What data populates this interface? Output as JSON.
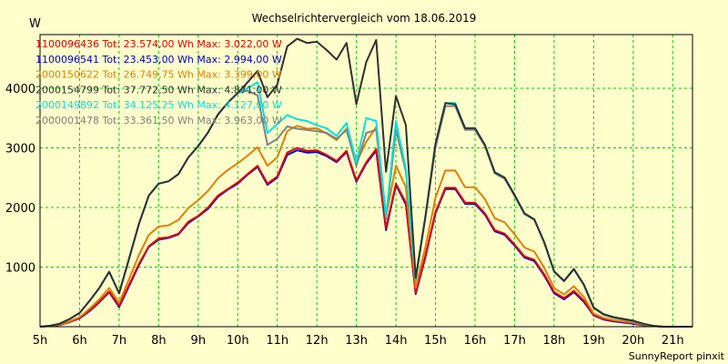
{
  "chart_data": {
    "type": "line",
    "title": "Wechselrichtervergleich vom 18.06.2019",
    "ylabel": "W",
    "xlabel": "",
    "footer": "SunnyReport pinxit",
    "x_range": [
      5,
      21.5
    ],
    "ylim": [
      0,
      4900
    ],
    "y_ticks": [
      1000,
      2000,
      3000,
      4000
    ],
    "x_ticks": [
      {
        "value": 5,
        "label": "5h"
      },
      {
        "value": 6,
        "label": "6h"
      },
      {
        "value": 7,
        "label": "7h"
      },
      {
        "value": 8,
        "label": "8h"
      },
      {
        "value": 9,
        "label": "9h"
      },
      {
        "value": 10,
        "label": "10h"
      },
      {
        "value": 11,
        "label": "11h"
      },
      {
        "value": 12,
        "label": "12h"
      },
      {
        "value": 13,
        "label": "13h"
      },
      {
        "value": 14,
        "label": "14h"
      },
      {
        "value": 15,
        "label": "15h"
      },
      {
        "value": 16,
        "label": "16h"
      },
      {
        "value": 17,
        "label": "17h"
      },
      {
        "value": 18,
        "label": "18h"
      },
      {
        "value": 19,
        "label": "19h"
      },
      {
        "value": 20,
        "label": "20h"
      },
      {
        "value": 21,
        "label": "21h"
      }
    ],
    "grid": true,
    "x": [
      5.0,
      5.25,
      5.5,
      5.75,
      6.0,
      6.25,
      6.5,
      6.75,
      7.0,
      7.25,
      7.5,
      7.75,
      8.0,
      8.25,
      8.5,
      8.75,
      9.0,
      9.25,
      9.5,
      9.75,
      10.0,
      10.25,
      10.5,
      10.75,
      11.0,
      11.25,
      11.5,
      11.75,
      12.0,
      12.25,
      12.5,
      12.75,
      13.0,
      13.25,
      13.5,
      13.75,
      14.0,
      14.25,
      14.5,
      14.75,
      15.0,
      15.25,
      15.5,
      15.75,
      16.0,
      16.25,
      16.5,
      16.75,
      17.0,
      17.25,
      17.5,
      17.75,
      18.0,
      18.25,
      18.5,
      18.75,
      19.0,
      19.25,
      19.5,
      19.75,
      20.0,
      20.25,
      20.5,
      20.75,
      21.0,
      21.25,
      21.5
    ],
    "series": [
      {
        "name": "1100096436",
        "legend": "1100096436 Tot: 23.574,00 Wh Max: 3.022,00 W",
        "color": "#e00000",
        "values": [
          0,
          10,
          30,
          80,
          150,
          270,
          420,
          590,
          350,
          700,
          1050,
          1350,
          1480,
          1500,
          1560,
          1760,
          1860,
          2000,
          2200,
          2310,
          2420,
          2560,
          2700,
          2400,
          2520,
          2920,
          3000,
          2950,
          2960,
          2880,
          2780,
          2950,
          2450,
          2760,
          2980,
          1650,
          2400,
          2080,
          570,
          1200,
          1920,
          2330,
          2330,
          2080,
          2080,
          1900,
          1620,
          1560,
          1380,
          1180,
          1120,
          880,
          580,
          480,
          600,
          440,
          200,
          130,
          100,
          80,
          60,
          30,
          10,
          0,
          0,
          0,
          0
        ]
      },
      {
        "name": "1100096541",
        "legend": "1100096541 Tot: 23.453,00 Wh Max: 2.994,00 W",
        "color": "#0000cc",
        "values": [
          0,
          10,
          30,
          80,
          140,
          260,
          410,
          580,
          330,
          680,
          1030,
          1340,
          1460,
          1490,
          1550,
          1740,
          1850,
          1980,
          2180,
          2300,
          2400,
          2550,
          2680,
          2380,
          2500,
          2880,
          2960,
          2920,
          2930,
          2860,
          2760,
          2930,
          2430,
          2740,
          2950,
          1620,
          2380,
          2050,
          550,
          1180,
          1900,
          2310,
          2310,
          2060,
          2060,
          1880,
          1600,
          1540,
          1360,
          1160,
          1100,
          860,
          560,
          460,
          580,
          420,
          190,
          120,
          90,
          70,
          50,
          25,
          10,
          0,
          0,
          0,
          0
        ]
      },
      {
        "name": "2000150622",
        "legend": "2000150622 Tot: 26.749,75 Wh Max: 3.399,00 W",
        "color": "#e08000",
        "values": [
          0,
          10,
          40,
          90,
          160,
          300,
          460,
          650,
          400,
          800,
          1200,
          1540,
          1680,
          1700,
          1790,
          1990,
          2120,
          2280,
          2490,
          2630,
          2740,
          2870,
          3010,
          2700,
          2840,
          3280,
          3370,
          3320,
          3330,
          3240,
          3130,
          3320,
          2750,
          3100,
          3350,
          1850,
          2700,
          2340,
          650,
          1350,
          2160,
          2620,
          2620,
          2340,
          2340,
          2140,
          1820,
          1750,
          1550,
          1330,
          1260,
          990,
          650,
          540,
          680,
          500,
          220,
          150,
          110,
          90,
          70,
          35,
          10,
          0,
          0,
          0,
          0
        ]
      },
      {
        "name": "2000154799",
        "legend": "2000154799 Tot: 37.772,50 Wh Max: 4.871,00 W",
        "color": "#303030",
        "values": [
          0,
          15,
          50,
          130,
          230,
          430,
          650,
          920,
          560,
          1140,
          1720,
          2200,
          2400,
          2440,
          2560,
          2840,
          3030,
          3260,
          3560,
          3760,
          3920,
          4100,
          4290,
          3850,
          4060,
          4700,
          4830,
          4760,
          4780,
          4640,
          4480,
          4760,
          3730,
          4440,
          4810,
          2600,
          3870,
          3380,
          820,
          1870,
          3060,
          3750,
          3730,
          3330,
          3330,
          3050,
          2590,
          2500,
          2210,
          1900,
          1800,
          1420,
          930,
          770,
          970,
          710,
          320,
          210,
          160,
          130,
          100,
          50,
          15,
          0,
          0,
          0,
          0
        ]
      },
      {
        "name": "2000149892",
        "legend": "2000149892 Tot: 34.125,25 Wh Max: 4.127,00 W",
        "color": "#00e0e0",
        "values": [
          0,
          15,
          50,
          130,
          230,
          430,
          650,
          920,
          560,
          1140,
          1720,
          2200,
          2400,
          2440,
          2560,
          2840,
          3030,
          3260,
          3560,
          3760,
          3920,
          4000,
          4100,
          3250,
          3400,
          3550,
          3480,
          3450,
          3380,
          3330,
          3200,
          3420,
          2750,
          3500,
          3450,
          1850,
          3450,
          2650,
          800,
          1870,
          3060,
          3750,
          3750,
          3330,
          3330,
          3050,
          2590,
          2500,
          2210,
          1900,
          1800,
          1420,
          930,
          770,
          970,
          710,
          320,
          210,
          160,
          130,
          100,
          50,
          15,
          0,
          0,
          0,
          0
        ]
      },
      {
        "name": "2000001478",
        "legend": "2000001478 Tot: 33.361,50 Wh Max: 3.963,00 W",
        "color": "#808080",
        "values": [
          0,
          15,
          50,
          130,
          230,
          430,
          650,
          920,
          560,
          1140,
          1720,
          2200,
          2400,
          2440,
          2560,
          2840,
          3030,
          3260,
          3560,
          3760,
          3920,
          3960,
          3880,
          3050,
          3150,
          3360,
          3320,
          3300,
          3280,
          3250,
          3150,
          3300,
          2700,
          3250,
          3300,
          1800,
          3300,
          2600,
          780,
          1850,
          3000,
          3700,
          3700,
          3300,
          3300,
          3030,
          2570,
          2480,
          2190,
          1890,
          1790,
          1410,
          920,
          760,
          960,
          700,
          310,
          200,
          150,
          120,
          90,
          45,
          15,
          0,
          0,
          0,
          0
        ]
      }
    ]
  }
}
